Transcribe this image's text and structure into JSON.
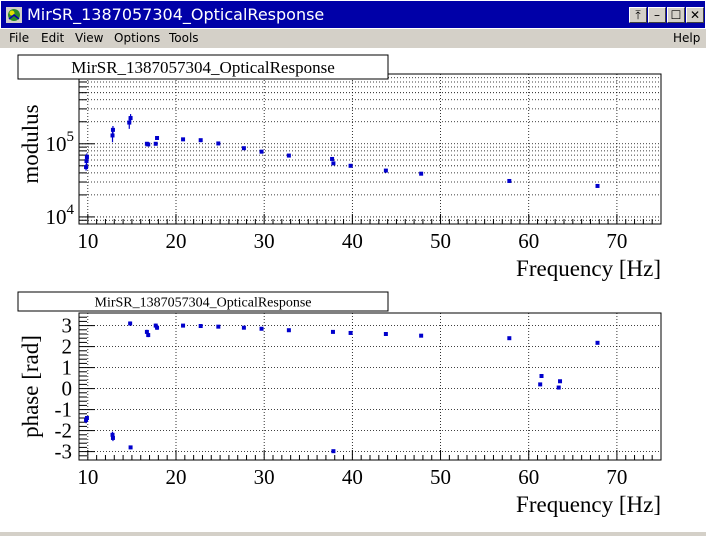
{
  "window": {
    "title": "MirSR_1387057304_OpticalResponse",
    "app_icon": "root-app-icon"
  },
  "window_controls": [
    {
      "name": "pin-button",
      "glyph": "⤒"
    },
    {
      "name": "minimize-button",
      "glyph": "–"
    },
    {
      "name": "maximize-button",
      "glyph": "☐"
    },
    {
      "name": "close-button",
      "glyph": "✕"
    }
  ],
  "menu": {
    "items": [
      "File",
      "Edit",
      "View",
      "Options",
      "Tools"
    ],
    "help": "Help"
  },
  "chart_data": [
    {
      "type": "scatter",
      "title": "MirSR_1387057304_OpticalResponse",
      "xlabel": "Frequency [Hz]",
      "ylabel": "modulus",
      "xlim": [
        9,
        75
      ],
      "ylim": [
        8000,
        900000
      ],
      "yscale": "log",
      "grid": true,
      "xticks": [
        10,
        20,
        30,
        40,
        50,
        60,
        70
      ],
      "yticks": [
        {
          "value": 10000,
          "mantissa": "10",
          "exp": "4"
        },
        {
          "value": 100000,
          "mantissa": "10",
          "exp": "5"
        }
      ],
      "color": "#0000cc",
      "points": [
        {
          "x": 9.8,
          "y": 48000,
          "err": 5000
        },
        {
          "x": 9.85,
          "y": 58000,
          "err": 7000
        },
        {
          "x": 9.9,
          "y": 66000,
          "err": 8000
        },
        {
          "x": 12.8,
          "y": 130000,
          "err": 25000
        },
        {
          "x": 12.85,
          "y": 155000,
          "err": 20000
        },
        {
          "x": 14.7,
          "y": 195000,
          "err": 35000
        },
        {
          "x": 14.85,
          "y": 225000,
          "err": 30000
        },
        {
          "x": 16.7,
          "y": 100000,
          "err": 6000
        },
        {
          "x": 16.85,
          "y": 98000,
          "err": 5000
        },
        {
          "x": 17.7,
          "y": 100000,
          "err": 5000
        },
        {
          "x": 17.85,
          "y": 120000,
          "err": 6000
        },
        {
          "x": 20.8,
          "y": 115000,
          "err": 5000
        },
        {
          "x": 22.8,
          "y": 112000,
          "err": 4000
        },
        {
          "x": 24.8,
          "y": 101000,
          "err": 4000
        },
        {
          "x": 27.7,
          "y": 87000,
          "err": 3000
        },
        {
          "x": 29.7,
          "y": 78000,
          "err": 3000
        },
        {
          "x": 32.8,
          "y": 69000,
          "err": 2500
        },
        {
          "x": 37.7,
          "y": 62000,
          "err": 3000
        },
        {
          "x": 37.85,
          "y": 54000,
          "err": 2500
        },
        {
          "x": 39.8,
          "y": 50000,
          "err": 2000
        },
        {
          "x": 43.8,
          "y": 43000,
          "err": 1500
        },
        {
          "x": 47.8,
          "y": 39000,
          "err": 1500
        },
        {
          "x": 57.8,
          "y": 31000,
          "err": 1200
        },
        {
          "x": 67.8,
          "y": 26500,
          "err": 1200
        }
      ]
    },
    {
      "type": "scatter",
      "title": "MirSR_1387057304_OpticalResponse",
      "xlabel": "Frequency [Hz]",
      "ylabel": "phase [rad]",
      "xlim": [
        9,
        75
      ],
      "ylim": [
        -3.4,
        3.6
      ],
      "grid": true,
      "xticks": [
        10,
        20,
        30,
        40,
        50,
        60,
        70
      ],
      "yticks": [
        -3,
        -2,
        -1,
        0,
        1,
        2,
        3
      ],
      "color": "#0000cc",
      "points": [
        {
          "x": 9.8,
          "y": -1.5,
          "err": 0.15
        },
        {
          "x": 9.9,
          "y": -1.4,
          "err": 0.1
        },
        {
          "x": 12.8,
          "y": -2.2,
          "err": 0.15
        },
        {
          "x": 12.85,
          "y": -2.35,
          "err": 0.15
        },
        {
          "x": 14.8,
          "y": 3.1,
          "err": 0.1
        },
        {
          "x": 14.85,
          "y": -2.8,
          "err": 0.08
        },
        {
          "x": 16.7,
          "y": 2.7,
          "err": 0.1
        },
        {
          "x": 16.85,
          "y": 2.55,
          "err": 0.1
        },
        {
          "x": 17.7,
          "y": 3.0,
          "err": 0.1
        },
        {
          "x": 17.85,
          "y": 2.9,
          "err": 0.1
        },
        {
          "x": 20.8,
          "y": 3.0,
          "err": 0.06
        },
        {
          "x": 22.8,
          "y": 2.98,
          "err": 0.06
        },
        {
          "x": 24.8,
          "y": 2.95,
          "err": 0.05
        },
        {
          "x": 27.7,
          "y": 2.9,
          "err": 0.05
        },
        {
          "x": 29.7,
          "y": 2.85,
          "err": 0.05
        },
        {
          "x": 32.8,
          "y": 2.78,
          "err": 0.04
        },
        {
          "x": 37.8,
          "y": 2.7,
          "err": 0.04
        },
        {
          "x": 37.85,
          "y": -2.98,
          "err": 0.04
        },
        {
          "x": 39.8,
          "y": 2.65,
          "err": 0.04
        },
        {
          "x": 43.8,
          "y": 2.6,
          "err": 0.04
        },
        {
          "x": 47.8,
          "y": 2.52,
          "err": 0.04
        },
        {
          "x": 57.8,
          "y": 2.4,
          "err": 0.04
        },
        {
          "x": 61.3,
          "y": 0.2,
          "err": 0.08
        },
        {
          "x": 61.45,
          "y": 0.6,
          "err": 0.08
        },
        {
          "x": 63.4,
          "y": 0.05,
          "err": 0.08
        },
        {
          "x": 63.55,
          "y": 0.35,
          "err": 0.08
        },
        {
          "x": 67.8,
          "y": 2.18,
          "err": 0.05
        }
      ]
    }
  ]
}
